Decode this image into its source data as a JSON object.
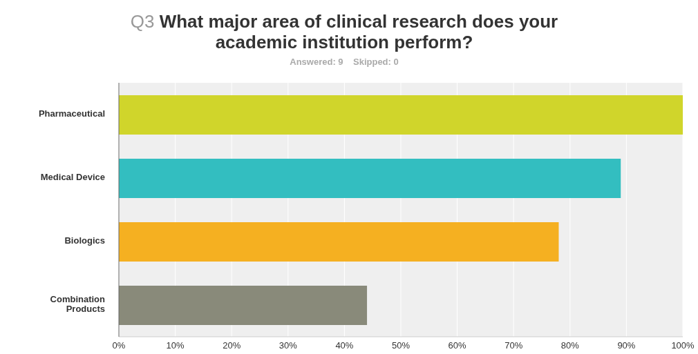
{
  "chart_data": {
    "type": "bar",
    "orientation": "horizontal",
    "title": "Q3 What major area of clinical research does your academic institution perform?",
    "subtitle": "Answered: 9    Skipped: 0",
    "categories": [
      "Pharmaceutical",
      "Medical Device",
      "Biologics",
      "Combination Products"
    ],
    "values": [
      100,
      89,
      78,
      44
    ],
    "colors": [
      "#d0d52b",
      "#33bec0",
      "#f5b021",
      "#898a7a"
    ],
    "xlim": [
      0,
      100
    ],
    "xticks": [
      {
        "value": 0,
        "label": "0%"
      },
      {
        "value": 10,
        "label": "10%"
      },
      {
        "value": 20,
        "label": "20%"
      },
      {
        "value": 30,
        "label": "30%"
      },
      {
        "value": 40,
        "label": "40%"
      },
      {
        "value": 50,
        "label": "50%"
      },
      {
        "value": 60,
        "label": "60%"
      },
      {
        "value": 70,
        "label": "70%"
      },
      {
        "value": 80,
        "label": "80%"
      },
      {
        "value": 90,
        "label": "90%"
      },
      {
        "value": 100,
        "label": "100%"
      }
    ],
    "grid": "x",
    "legend": false
  }
}
